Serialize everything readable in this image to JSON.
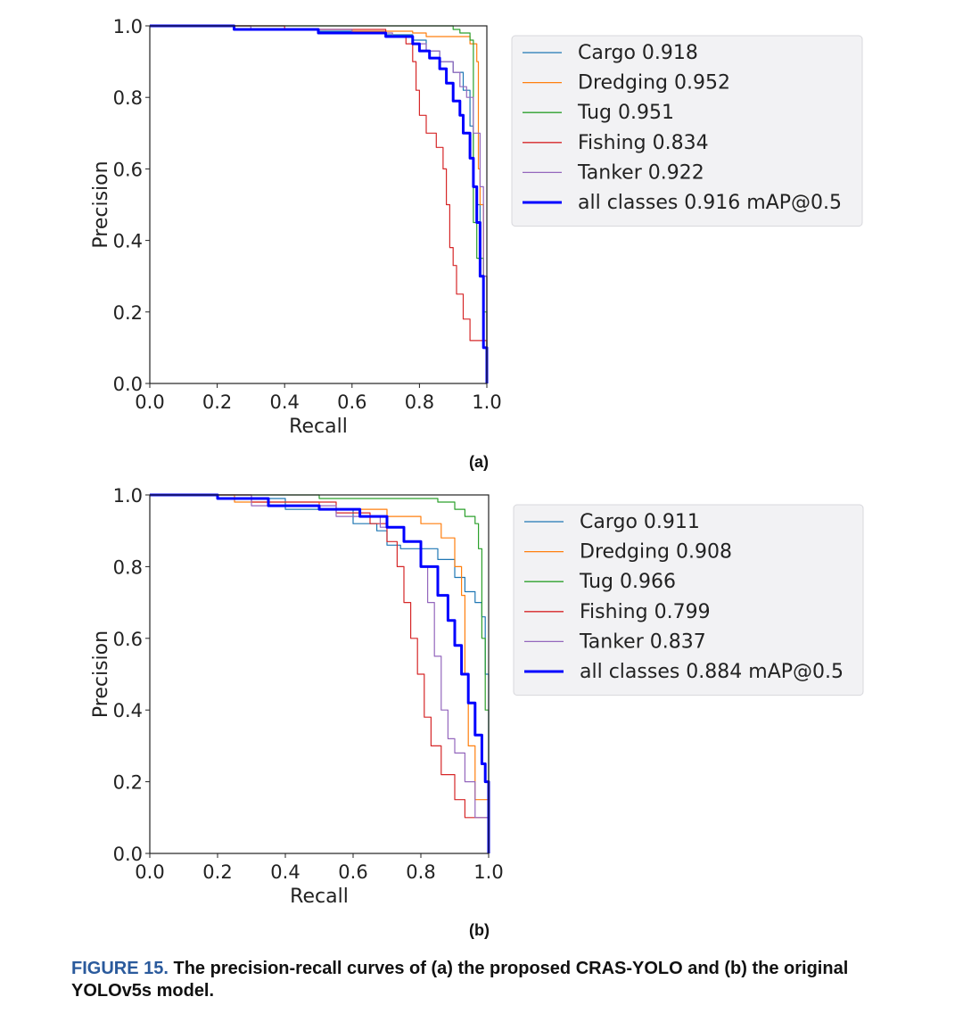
{
  "chart_data": [
    {
      "type": "line",
      "panel_label": "(a)",
      "xlabel": "Recall",
      "ylabel": "Precision",
      "xlim": [
        0,
        1
      ],
      "ylim": [
        0,
        1
      ],
      "xticks": [
        "0.0",
        "0.2",
        "0.4",
        "0.6",
        "0.8",
        "1.0"
      ],
      "yticks": [
        "0.0",
        "0.2",
        "0.4",
        "0.6",
        "0.8",
        "1.0"
      ],
      "legend_position": "right, outside axes",
      "series": [
        {
          "name": "Cargo 0.918",
          "color": "#1f77b4",
          "width": 1.2,
          "points": [
            [
              0,
              1
            ],
            [
              0.25,
              0.99
            ],
            [
              0.5,
              0.985
            ],
            [
              0.7,
              0.975
            ],
            [
              0.78,
              0.96
            ],
            [
              0.82,
              0.93
            ],
            [
              0.86,
              0.9
            ],
            [
              0.9,
              0.87
            ],
            [
              0.93,
              0.82
            ],
            [
              0.95,
              0.72
            ],
            [
              0.96,
              0.55
            ],
            [
              0.97,
              0.5
            ],
            [
              0.98,
              0.3
            ],
            [
              1.0,
              0
            ]
          ]
        },
        {
          "name": "Dredging 0.952",
          "color": "#ff7f0e",
          "width": 1.2,
          "points": [
            [
              0,
              1
            ],
            [
              0.3,
              0.99
            ],
            [
              0.6,
              0.985
            ],
            [
              0.78,
              0.98
            ],
            [
              0.82,
              0.97
            ],
            [
              0.92,
              0.97
            ],
            [
              0.95,
              0.95
            ],
            [
              0.97,
              0.9
            ],
            [
              0.975,
              0.6
            ],
            [
              0.98,
              0.5
            ],
            [
              0.99,
              0.3
            ],
            [
              1.0,
              0
            ]
          ]
        },
        {
          "name": "Tug 0.951",
          "color": "#2ca02c",
          "width": 1.2,
          "points": [
            [
              0,
              1
            ],
            [
              0.5,
              1.0
            ],
            [
              0.85,
              1.0
            ],
            [
              0.9,
              0.99
            ],
            [
              0.92,
              0.98
            ],
            [
              0.95,
              0.96
            ],
            [
              0.96,
              0.91
            ],
            [
              0.96,
              0.45
            ],
            [
              0.97,
              0.35
            ],
            [
              0.99,
              0.2
            ],
            [
              1.0,
              0
            ]
          ]
        },
        {
          "name": "Fishing 0.834",
          "color": "#d62728",
          "width": 1.2,
          "points": [
            [
              0,
              1
            ],
            [
              0.4,
              0.99
            ],
            [
              0.7,
              0.97
            ],
            [
              0.76,
              0.95
            ],
            [
              0.78,
              0.9
            ],
            [
              0.79,
              0.82
            ],
            [
              0.8,
              0.75
            ],
            [
              0.82,
              0.7
            ],
            [
              0.85,
              0.66
            ],
            [
              0.87,
              0.6
            ],
            [
              0.88,
              0.5
            ],
            [
              0.89,
              0.38
            ],
            [
              0.9,
              0.33
            ],
            [
              0.91,
              0.25
            ],
            [
              0.93,
              0.18
            ],
            [
              0.95,
              0.12
            ],
            [
              1.0,
              0
            ]
          ]
        },
        {
          "name": "Tanker 0.922",
          "color": "#9467bd",
          "width": 1.2,
          "points": [
            [
              0,
              1
            ],
            [
              0.3,
              0.99
            ],
            [
              0.6,
              0.98
            ],
            [
              0.72,
              0.97
            ],
            [
              0.78,
              0.95
            ],
            [
              0.82,
              0.93
            ],
            [
              0.86,
              0.9
            ],
            [
              0.9,
              0.87
            ],
            [
              0.92,
              0.83
            ],
            [
              0.94,
              0.8
            ],
            [
              0.96,
              0.7
            ],
            [
              0.98,
              0.55
            ],
            [
              0.99,
              0.3
            ],
            [
              1.0,
              0
            ]
          ]
        },
        {
          "name": "all classes 0.916 mAP@0.5",
          "color": "#0000ff",
          "width": 3,
          "points": [
            [
              0,
              1
            ],
            [
              0.25,
              0.99
            ],
            [
              0.5,
              0.98
            ],
            [
              0.7,
              0.97
            ],
            [
              0.78,
              0.95
            ],
            [
              0.8,
              0.93
            ],
            [
              0.83,
              0.91
            ],
            [
              0.86,
              0.88
            ],
            [
              0.88,
              0.84
            ],
            [
              0.9,
              0.79
            ],
            [
              0.92,
              0.75
            ],
            [
              0.93,
              0.7
            ],
            [
              0.95,
              0.63
            ],
            [
              0.96,
              0.55
            ],
            [
              0.97,
              0.45
            ],
            [
              0.98,
              0.3
            ],
            [
              0.99,
              0.1
            ],
            [
              1.0,
              0
            ]
          ]
        }
      ]
    },
    {
      "type": "line",
      "panel_label": "(b)",
      "xlabel": "Recall",
      "ylabel": "Precision",
      "xlim": [
        0,
        1
      ],
      "ylim": [
        0,
        1
      ],
      "xticks": [
        "0.0",
        "0.2",
        "0.4",
        "0.6",
        "0.8",
        "1.0"
      ],
      "yticks": [
        "0.0",
        "0.2",
        "0.4",
        "0.6",
        "0.8",
        "1.0"
      ],
      "legend_position": "right, outside axes",
      "series": [
        {
          "name": "Cargo 0.911",
          "color": "#1f77b4",
          "width": 1.2,
          "points": [
            [
              0,
              1
            ],
            [
              0.2,
              0.99
            ],
            [
              0.4,
              0.96
            ],
            [
              0.6,
              0.92
            ],
            [
              0.67,
              0.9
            ],
            [
              0.7,
              0.86
            ],
            [
              0.74,
              0.85
            ],
            [
              0.8,
              0.85
            ],
            [
              0.85,
              0.82
            ],
            [
              0.9,
              0.77
            ],
            [
              0.93,
              0.73
            ],
            [
              0.96,
              0.7
            ],
            [
              0.98,
              0.66
            ],
            [
              0.99,
              0.5
            ],
            [
              1.0,
              0
            ]
          ]
        },
        {
          "name": "Dredging 0.908",
          "color": "#ff7f0e",
          "width": 1.2,
          "points": [
            [
              0,
              1
            ],
            [
              0.25,
              0.98
            ],
            [
              0.5,
              0.96
            ],
            [
              0.7,
              0.94
            ],
            [
              0.8,
              0.92
            ],
            [
              0.86,
              0.88
            ],
            [
              0.9,
              0.8
            ],
            [
              0.92,
              0.72
            ],
            [
              0.93,
              0.5
            ],
            [
              0.94,
              0.3
            ],
            [
              0.96,
              0.15
            ],
            [
              1.0,
              0
            ]
          ]
        },
        {
          "name": "Tug 0.966",
          "color": "#2ca02c",
          "width": 1.2,
          "points": [
            [
              0,
              1
            ],
            [
              0.5,
              0.99
            ],
            [
              0.75,
              0.99
            ],
            [
              0.85,
              0.98
            ],
            [
              0.9,
              0.96
            ],
            [
              0.93,
              0.94
            ],
            [
              0.96,
              0.92
            ],
            [
              0.97,
              0.85
            ],
            [
              0.98,
              0.6
            ],
            [
              0.99,
              0.4
            ],
            [
              1.0,
              0
            ]
          ]
        },
        {
          "name": "Fishing 0.799",
          "color": "#d62728",
          "width": 1.2,
          "points": [
            [
              0,
              1
            ],
            [
              0.3,
              0.98
            ],
            [
              0.55,
              0.95
            ],
            [
              0.65,
              0.92
            ],
            [
              0.7,
              0.87
            ],
            [
              0.73,
              0.8
            ],
            [
              0.75,
              0.7
            ],
            [
              0.77,
              0.6
            ],
            [
              0.79,
              0.5
            ],
            [
              0.81,
              0.38
            ],
            [
              0.83,
              0.3
            ],
            [
              0.86,
              0.22
            ],
            [
              0.9,
              0.15
            ],
            [
              0.93,
              0.1
            ],
            [
              1.0,
              0
            ]
          ]
        },
        {
          "name": "Tanker 0.837",
          "color": "#9467bd",
          "width": 1.2,
          "points": [
            [
              0,
              1
            ],
            [
              0.3,
              0.97
            ],
            [
              0.55,
              0.94
            ],
            [
              0.68,
              0.91
            ],
            [
              0.75,
              0.87
            ],
            [
              0.8,
              0.8
            ],
            [
              0.82,
              0.7
            ],
            [
              0.84,
              0.55
            ],
            [
              0.86,
              0.4
            ],
            [
              0.88,
              0.32
            ],
            [
              0.9,
              0.28
            ],
            [
              0.93,
              0.2
            ],
            [
              0.96,
              0.1
            ],
            [
              1.0,
              0
            ]
          ]
        },
        {
          "name": "all classes 0.884 mAP@0.5",
          "color": "#0000ff",
          "width": 3,
          "points": [
            [
              0,
              1
            ],
            [
              0.2,
              0.99
            ],
            [
              0.35,
              0.97
            ],
            [
              0.5,
              0.96
            ],
            [
              0.62,
              0.94
            ],
            [
              0.7,
              0.91
            ],
            [
              0.75,
              0.87
            ],
            [
              0.8,
              0.8
            ],
            [
              0.85,
              0.72
            ],
            [
              0.88,
              0.65
            ],
            [
              0.9,
              0.58
            ],
            [
              0.92,
              0.5
            ],
            [
              0.94,
              0.42
            ],
            [
              0.96,
              0.33
            ],
            [
              0.98,
              0.25
            ],
            [
              0.99,
              0.2
            ],
            [
              1.0,
              0
            ]
          ]
        }
      ]
    }
  ],
  "caption": {
    "figure_label": "FIGURE 15.",
    "text": "The precision-recall curves of (a) the proposed CRAS-YOLO and (b) the original YOLOv5s model."
  }
}
